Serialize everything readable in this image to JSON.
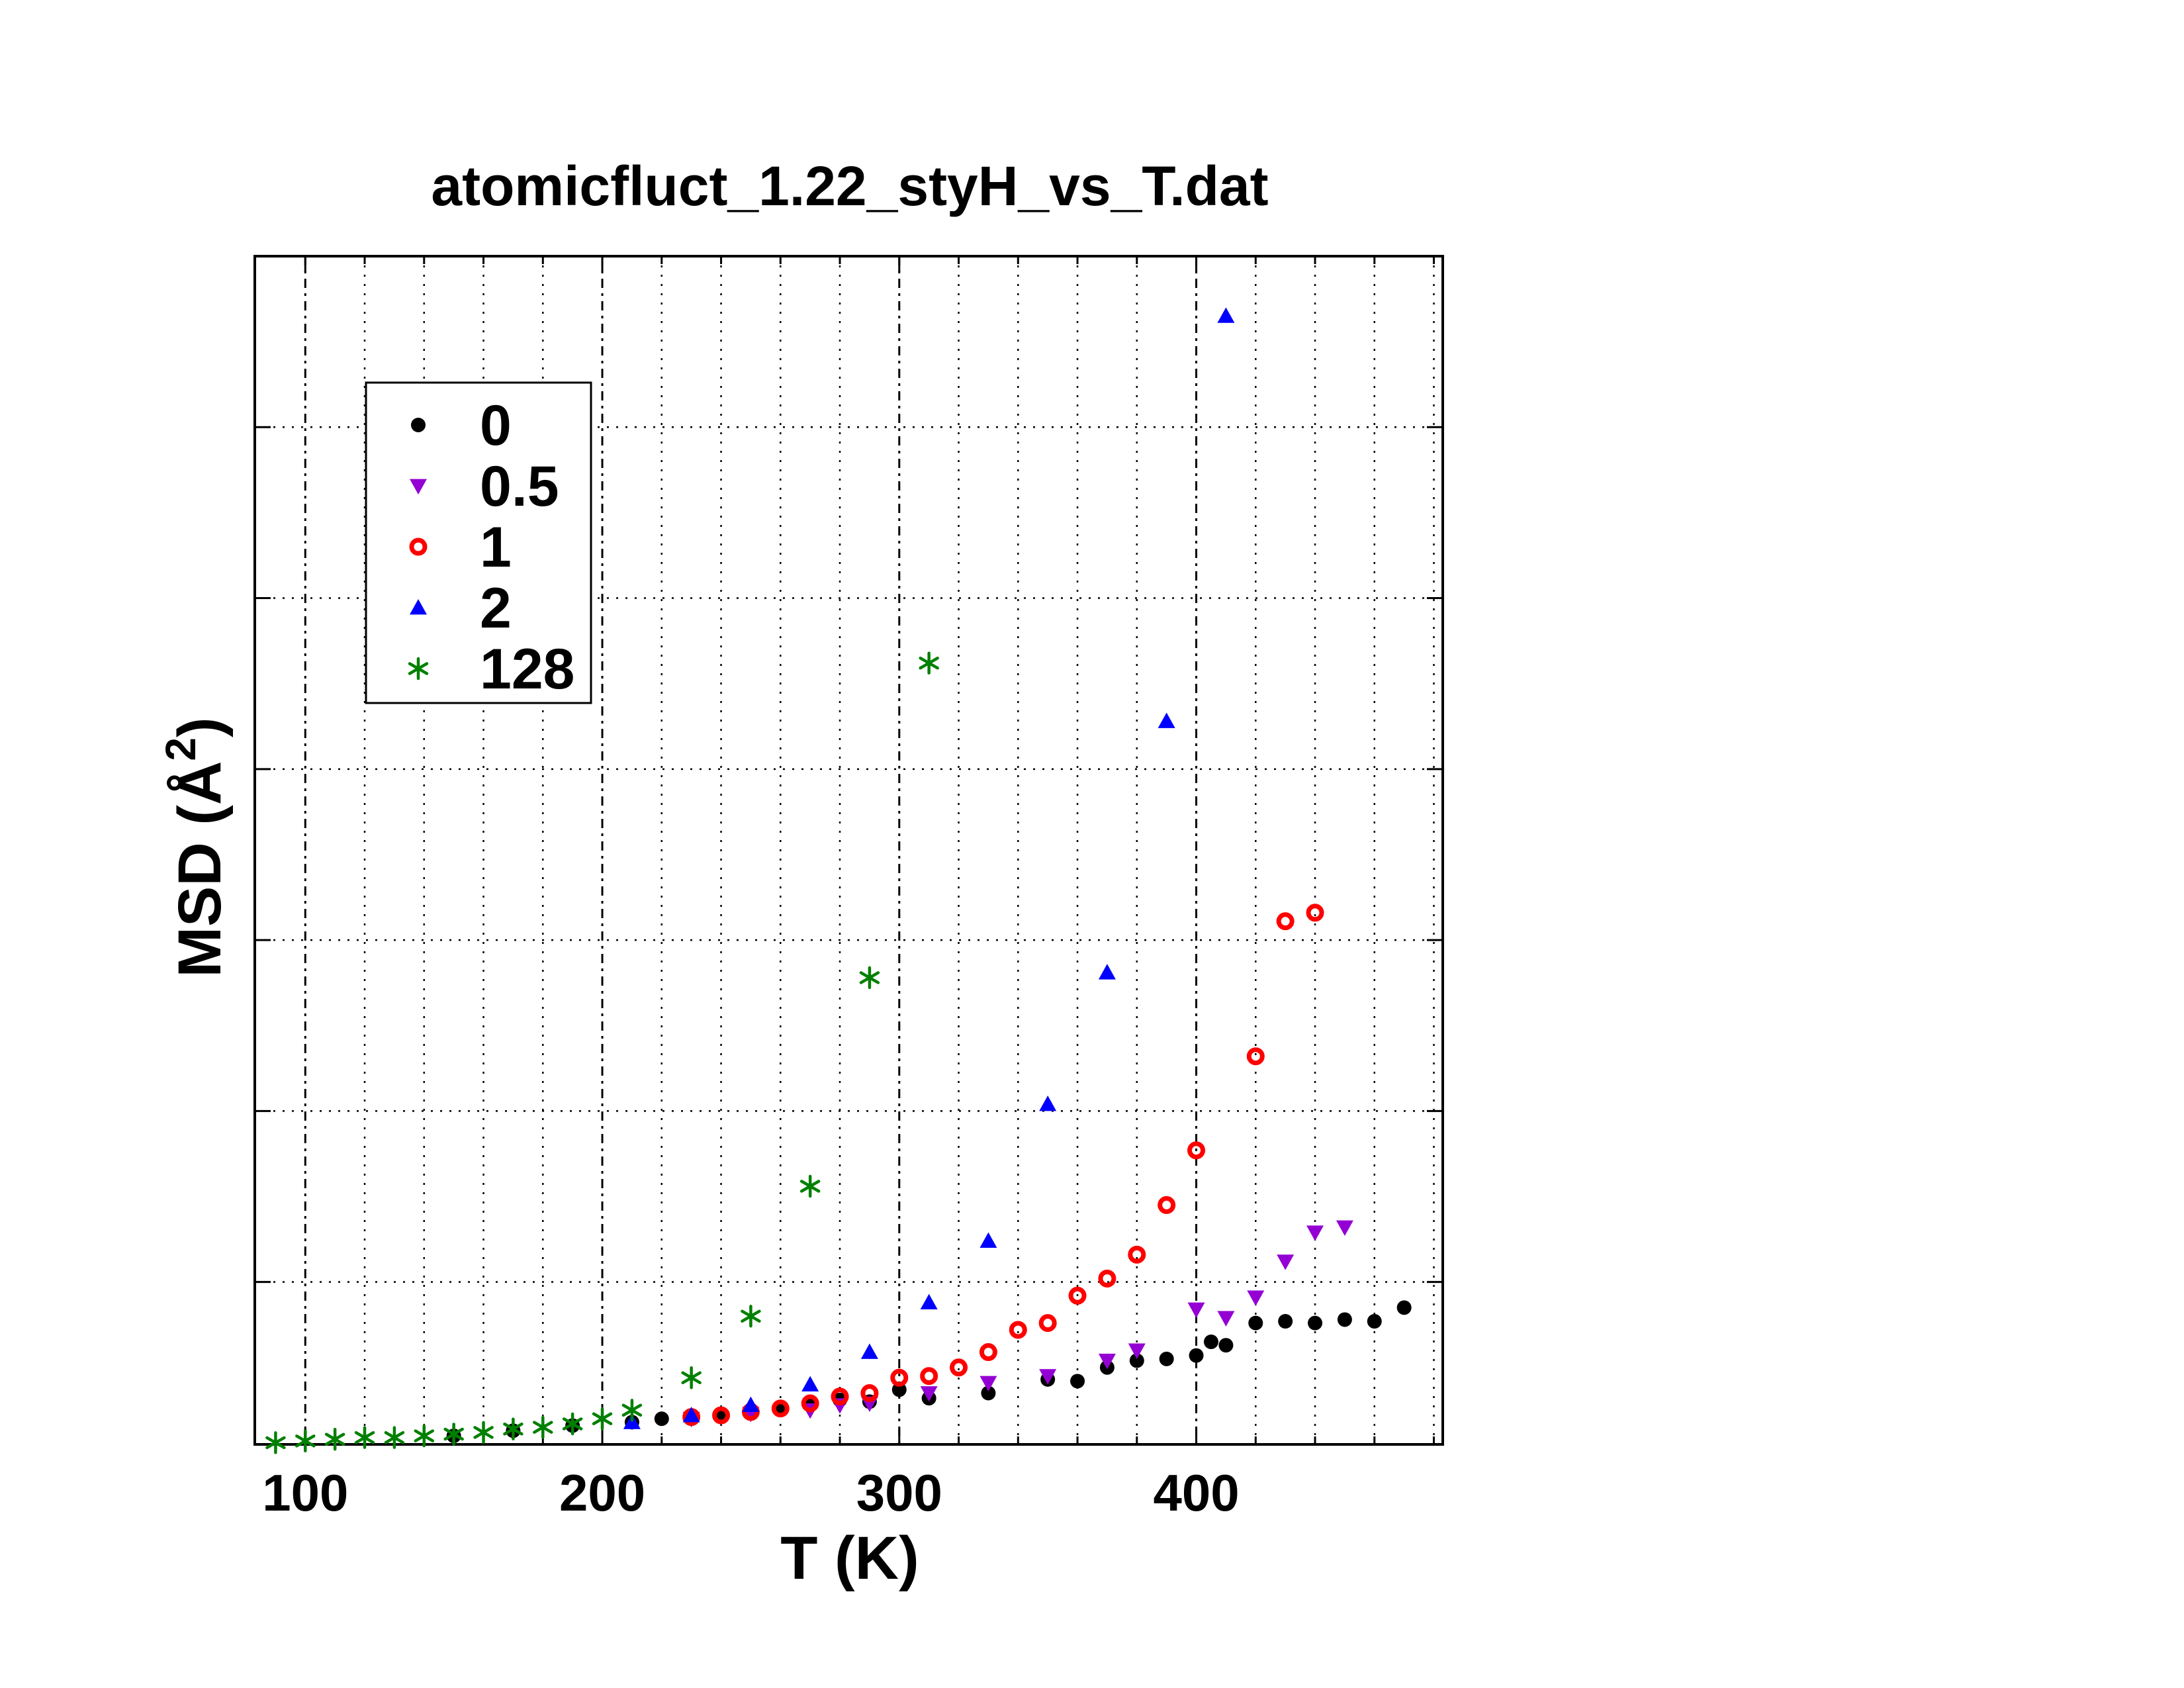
{
  "chart_data": {
    "type": "scatter",
    "title": "atomicfluct_1.22_styH_vs_T.dat",
    "xlabel": "T (K)",
    "ylabel": "MSD (Å²)",
    "ylabel_base": "MSD (Å",
    "ylabel_sup": "2",
    "ylabel_close": ")",
    "xlim": [
      83,
      483
    ],
    "ylim": [
      0,
      6.95
    ],
    "x_ticks": [
      100,
      200,
      300,
      400
    ],
    "y_ticks_unlabeled": [
      0.95,
      1.95,
      2.95,
      3.95,
      4.95,
      5.95
    ],
    "grid": true,
    "legend_position": "top-left",
    "series": [
      {
        "name": "0",
        "marker": "circle-filled",
        "color": "#000000",
        "x": [
          150,
          170,
          190,
          210,
          220,
          230,
          240,
          250,
          260,
          270,
          280,
          290,
          300,
          310,
          330,
          350,
          360,
          370,
          380,
          390,
          400,
          405,
          410,
          420,
          430,
          440,
          450,
          460,
          470
        ],
        "y": [
          0.05,
          0.08,
          0.11,
          0.13,
          0.15,
          0.16,
          0.17,
          0.19,
          0.21,
          0.23,
          0.26,
          0.25,
          0.32,
          0.27,
          0.3,
          0.38,
          0.37,
          0.45,
          0.49,
          0.5,
          0.52,
          0.6,
          0.58,
          0.71,
          0.72,
          0.71,
          0.73,
          0.72,
          0.8
        ]
      },
      {
        "name": "0.5",
        "marker": "triangle-down",
        "color": "#9400d3",
        "x": [
          230,
          250,
          270,
          280,
          290,
          310,
          330,
          350,
          370,
          380,
          400,
          410,
          420,
          430,
          440,
          450
        ],
        "y": [
          0.15,
          0.18,
          0.2,
          0.23,
          0.24,
          0.3,
          0.36,
          0.4,
          0.49,
          0.55,
          0.79,
          0.74,
          0.86,
          1.07,
          1.24,
          1.27
        ]
      },
      {
        "name": "1",
        "marker": "circle-open",
        "color": "#ff0000",
        "x": [
          230,
          240,
          250,
          260,
          270,
          280,
          290,
          300,
          310,
          320,
          330,
          340,
          350,
          360,
          370,
          380,
          390,
          400,
          420,
          430,
          440
        ],
        "y": [
          0.16,
          0.17,
          0.19,
          0.21,
          0.24,
          0.28,
          0.3,
          0.39,
          0.4,
          0.45,
          0.54,
          0.67,
          0.71,
          0.87,
          0.97,
          1.11,
          1.4,
          1.72,
          2.27,
          3.06,
          3.11
        ]
      },
      {
        "name": "2",
        "marker": "triangle-up",
        "color": "#0000ff",
        "x": [
          210,
          230,
          250,
          270,
          290,
          310,
          330,
          350,
          370,
          390,
          410
        ],
        "y": [
          0.13,
          0.17,
          0.23,
          0.35,
          0.54,
          0.83,
          1.19,
          1.99,
          2.76,
          4.23,
          6.6
        ]
      },
      {
        "name": "128",
        "marker": "asterisk",
        "color": "#008000",
        "x": [
          90,
          100,
          110,
          120,
          130,
          140,
          150,
          160,
          170,
          180,
          190,
          200,
          210,
          230,
          250,
          270,
          290,
          310
        ],
        "y": [
          0.01,
          0.02,
          0.03,
          0.04,
          0.04,
          0.05,
          0.06,
          0.07,
          0.09,
          0.1,
          0.12,
          0.15,
          0.2,
          0.39,
          0.75,
          1.51,
          2.73,
          4.57
        ]
      }
    ]
  }
}
